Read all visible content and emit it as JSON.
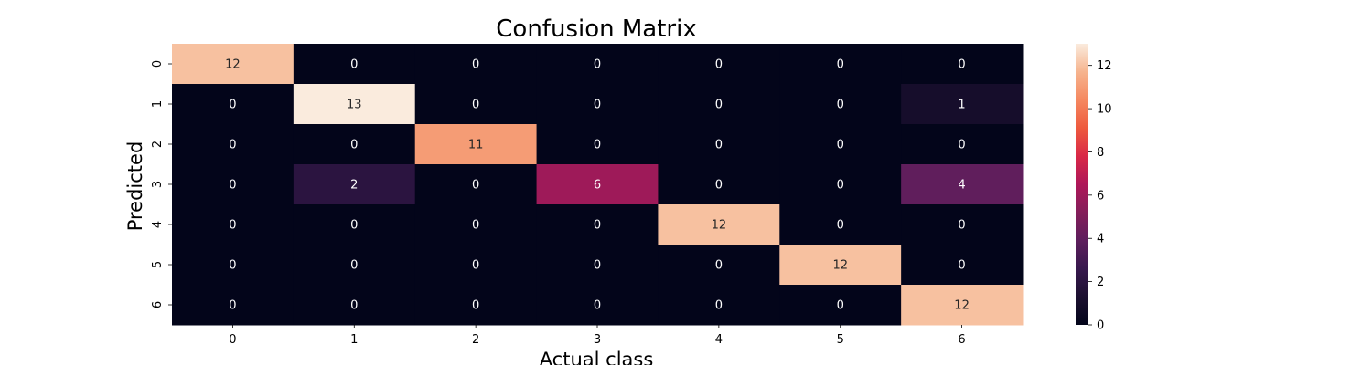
{
  "chart_data": {
    "type": "heatmap",
    "title": "Confusion Matrix",
    "xlabel": "Actual class",
    "ylabel": "Predicted",
    "x_categories": [
      "0",
      "1",
      "2",
      "3",
      "4",
      "5",
      "6"
    ],
    "y_categories": [
      "0",
      "1",
      "2",
      "3",
      "4",
      "5",
      "6"
    ],
    "values": [
      [
        12,
        0,
        0,
        0,
        0,
        0,
        0
      ],
      [
        0,
        13,
        0,
        0,
        0,
        0,
        1
      ],
      [
        0,
        0,
        11,
        0,
        0,
        0,
        0
      ],
      [
        0,
        2,
        0,
        6,
        0,
        0,
        4
      ],
      [
        0,
        0,
        0,
        0,
        12,
        0,
        0
      ],
      [
        0,
        0,
        0,
        0,
        0,
        12,
        0
      ],
      [
        0,
        0,
        0,
        0,
        0,
        0,
        12
      ]
    ],
    "colorbar": {
      "range": [
        0,
        13
      ],
      "ticks": [
        "0",
        "2",
        "4",
        "6",
        "8",
        "10",
        "12"
      ],
      "colormap": "rocket"
    },
    "annotations": true,
    "grid": false
  }
}
